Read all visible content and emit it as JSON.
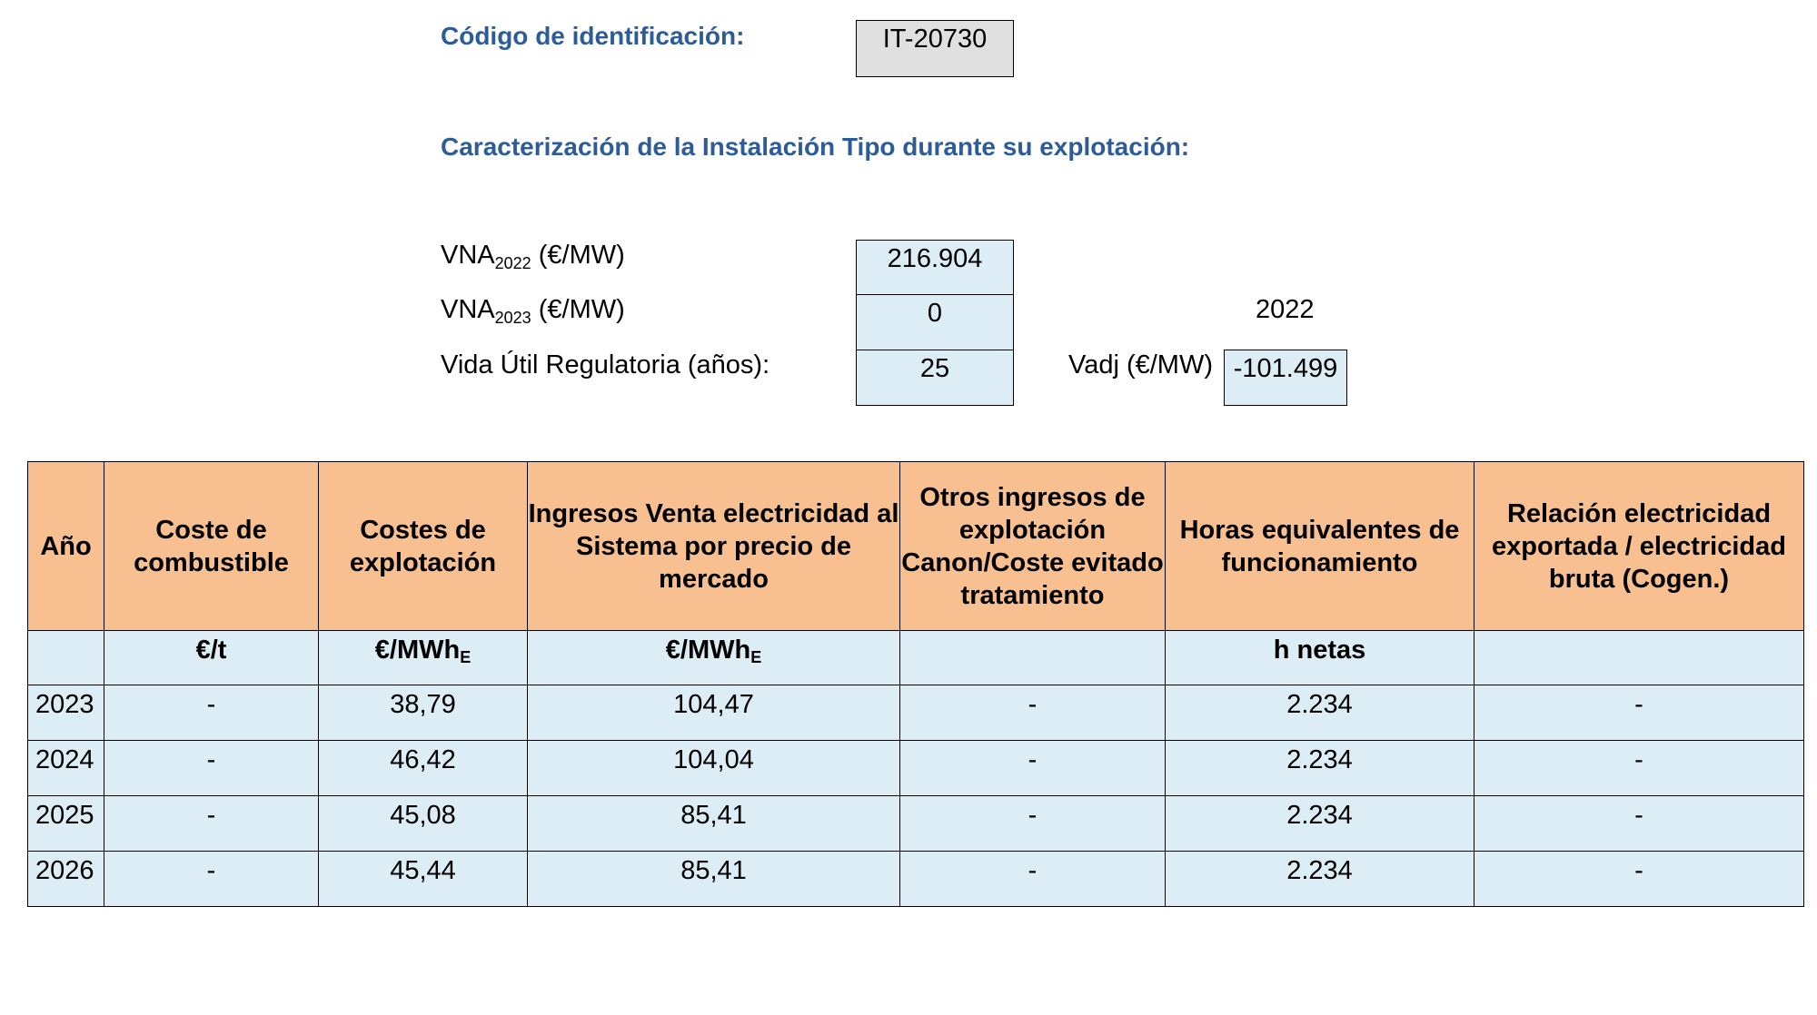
{
  "header": {
    "code_label": "Código de identificación:",
    "code_value": "IT-20730",
    "section_title": "Caracterización de la Instalación Tipo durante su explotación:"
  },
  "params": {
    "vna_2022": {
      "label_main": "VNA",
      "label_sub": "2022",
      "label_unit": " (€/MW)",
      "value": "216.904"
    },
    "vna_2023": {
      "label_main": "VNA",
      "label_sub": "2023",
      "label_unit": " (€/MW)",
      "value": "0"
    },
    "vida_util": {
      "label": "Vida Útil Regulatoria (años):",
      "value": "25"
    },
    "year_label": "2022",
    "vadj": {
      "label": "Vadj (€/MW)",
      "value": "-101.499"
    }
  },
  "table": {
    "headers": [
      "Año",
      "Coste de combustible",
      "Costes de explotación",
      "Ingresos Venta electricidad al Sistema por precio de mercado",
      "Otros ingresos de explotación Canon/Coste evitado tratamiento",
      "Horas equivalentes de funcionamiento",
      "Relación electricidad exportada / electricidad bruta (Cogen.)"
    ],
    "units": {
      "anio": "",
      "combustible": "€/t",
      "explotacion_main": "€/MWh",
      "explotacion_sub": "E",
      "ingresos_main": "€/MWh",
      "ingresos_sub": "E",
      "otros": "",
      "horas": "h netas",
      "relacion": ""
    },
    "rows": [
      [
        "2023",
        "-",
        "38,79",
        "104,47",
        "-",
        "2.234",
        "-"
      ],
      [
        "2024",
        "-",
        "46,42",
        "104,04",
        "-",
        "2.234",
        "-"
      ],
      [
        "2025",
        "-",
        "45,08",
        "85,41",
        "-",
        "2.234",
        "-"
      ],
      [
        "2026",
        "-",
        "45,44",
        "85,41",
        "-",
        "2.234",
        "-"
      ]
    ]
  },
  "colors": {
    "title": "#2e5c96",
    "header_bg": "#f8bf91",
    "cell_bg": "#dcedf5",
    "code_bg": "#e0e0e0"
  }
}
